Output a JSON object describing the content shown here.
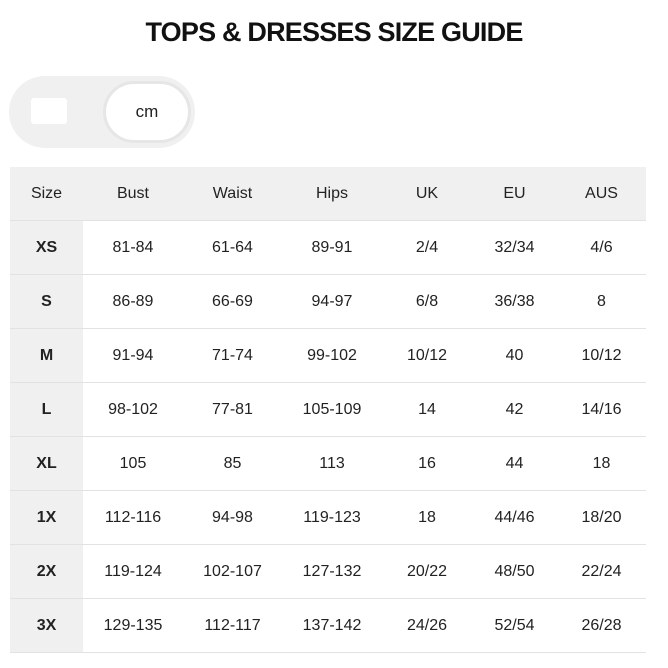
{
  "title": "TOPS & DRESSES SIZE GUIDE",
  "unit_toggle": {
    "selected": "cm"
  },
  "table": {
    "headers": [
      "Size",
      "Bust",
      "Waist",
      "Hips",
      "UK",
      "EU",
      "AUS"
    ],
    "rows": [
      [
        "XS",
        "81-84",
        "61-64",
        "89-91",
        "2/4",
        "32/34",
        "4/6"
      ],
      [
        "S",
        "86-89",
        "66-69",
        "94-97",
        "6/8",
        "36/38",
        "8"
      ],
      [
        "M",
        "91-94",
        "71-74",
        "99-102",
        "10/12",
        "40",
        "10/12"
      ],
      [
        "L",
        "98-102",
        "77-81",
        "105-109",
        "14",
        "42",
        "14/16"
      ],
      [
        "XL",
        "105",
        "85",
        "113",
        "16",
        "44",
        "18"
      ],
      [
        "1X",
        "112-116",
        "94-98",
        "119-123",
        "18",
        "44/46",
        "18/20"
      ],
      [
        "2X",
        "119-124",
        "102-107",
        "127-132",
        "20/22",
        "48/50",
        "22/24"
      ],
      [
        "3X",
        "129-135",
        "112-117",
        "137-142",
        "24/26",
        "52/54",
        "26/28"
      ]
    ]
  }
}
